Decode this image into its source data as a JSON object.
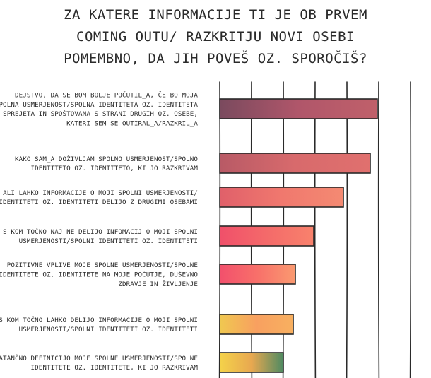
{
  "title_lines": [
    "Za katere informacije ti je ob prvem",
    "coming outu/ razkritju novi osebi",
    "pomembno, da jih poveš oz. sporočiš?"
  ],
  "chart_data": {
    "type": "bar",
    "orientation": "horizontal",
    "categories": [
      [
        "Dejstvo, da se bom bolje počutil_a, če bo moja",
        "spolna usmerjenost/spolna identiteta oz. identiteta",
        "sprejeta in spoštovana s strani drugih oz. osebe,",
        "kateri sem se outiral_a/razkril_a"
      ],
      [
        "Kako sam_a doživljam spolno usmerjenost/spolno",
        "identiteto oz. identiteto, ki jo razkrivam"
      ],
      [
        "Ali lahko informacije o moji spolni usmerjenosti/",
        "spolni identiteti oz. identiteti delijo z drugimi osebami"
      ],
      [
        "S kom točno naj ne delijo infomacij o moji spolni",
        "usmerjenosti/spolni identiteti oz. identiteti"
      ],
      [
        "Pozitivne vplive moje spolne usmerjenosti/spolne",
        "identitete oz. identitete na moje počutje, duševno",
        "zdravje in življenje"
      ],
      [
        "S kom točno lahko delijo informacije o moji spolni",
        "usmerjenosti/spolni identiteti oz. identiteti"
      ],
      [
        "Natančno definicijo moje spolne usmerjenosti/spolne",
        "identitete oz. identitete, ki jo razkrivam"
      ]
    ],
    "values": [
      223,
      213,
      175,
      133,
      107,
      104,
      90
    ],
    "xlim": [
      0,
      270
    ],
    "grid": true,
    "bar_colors": [
      [
        "#7a4a5e",
        "#b0566a",
        "#c0606a"
      ],
      [
        "#b85a66",
        "#d86a6c",
        "#e0706e"
      ],
      [
        "#e0606a",
        "#f0786e",
        "#f48a72"
      ],
      [
        "#f0506a",
        "#f46a6a",
        "#f8826c"
      ],
      [
        "#f2506c",
        "#f8706a",
        "#fa9a70"
      ],
      [
        "#f0c850",
        "#f8a060",
        "#f8b060"
      ],
      [
        "#f4d24a",
        "#e8a850",
        "#4e8a62"
      ]
    ]
  }
}
